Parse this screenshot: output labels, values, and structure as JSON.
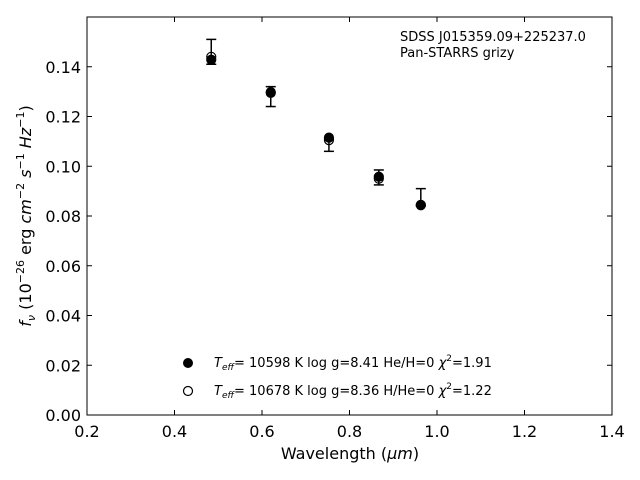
{
  "chart_data": {
    "type": "scatter",
    "xlabel_prefix": "Wavelength (",
    "xlabel_unit": "μm",
    "xlabel_suffix": ")",
    "ylabel_main": "f",
    "ylabel_sub": "ν",
    "ylabel_open": " (10",
    "ylabel_exp1": "−26",
    "ylabel_mid": " erg ",
    "ylabel_cm": "cm",
    "ylabel_exp2": "−2",
    "ylabel_s": " s",
    "ylabel_exp3": "−1",
    "ylabel_hz": " Hz",
    "ylabel_exp4": "−1",
    "ylabel_close": ")",
    "xlim": [
      0.2,
      1.4
    ],
    "ylim": [
      0.0,
      0.16
    ],
    "xticks": [
      0.2,
      0.4,
      0.6,
      0.8,
      1.0,
      1.2,
      1.4
    ],
    "xtick_labels": [
      "0.2",
      "0.4",
      "0.6",
      "0.8",
      "1.0",
      "1.2",
      "1.4"
    ],
    "yticks": [
      0.0,
      0.02,
      0.04,
      0.06,
      0.08,
      0.1,
      0.12,
      0.14
    ],
    "ytick_labels": [
      "0.00",
      "0.02",
      "0.04",
      "0.06",
      "0.08",
      "0.10",
      "0.12",
      "0.14"
    ],
    "annotation": [
      "SDSS J015359.09+225237.0",
      "Pan-STARRS grizy"
    ],
    "observed": {
      "x": [
        0.484,
        0.62,
        0.753,
        0.867,
        0.963
      ],
      "y": [
        0.1425,
        0.128,
        0.1085,
        0.0955,
        0.0875
      ],
      "err_low": [
        0.0015,
        0.004,
        0.0025,
        0.003,
        0.0035
      ],
      "err_high": [
        0.0085,
        0.004,
        0.0025,
        0.003,
        0.0035
      ]
    },
    "series": [
      {
        "marker": "filled-circle",
        "x": [
          0.484,
          0.62,
          0.753,
          0.867,
          0.963
        ],
        "y": [
          0.1428,
          0.1298,
          0.1115,
          0.0958,
          0.0845
        ],
        "legend": {
          "T": "T",
          "sub": "eff",
          "rest": "= 10598 K  log g=8.41  He/H=0  ",
          "chi": "χ",
          "chi_exp": "2",
          "chi_val": "=1.91"
        }
      },
      {
        "marker": "open-circle",
        "x": [
          0.484,
          0.62,
          0.753,
          0.867,
          0.963
        ],
        "y": [
          0.144,
          0.1295,
          0.1105,
          0.095,
          0.0843
        ],
        "legend": {
          "T": "T",
          "sub": "eff",
          "rest": "= 10678 K  log g=8.36  H/He=0  ",
          "chi": "χ",
          "chi_exp": "2",
          "chi_val": "=1.22"
        }
      }
    ],
    "grid": false,
    "legend_position": "bottom-center"
  }
}
